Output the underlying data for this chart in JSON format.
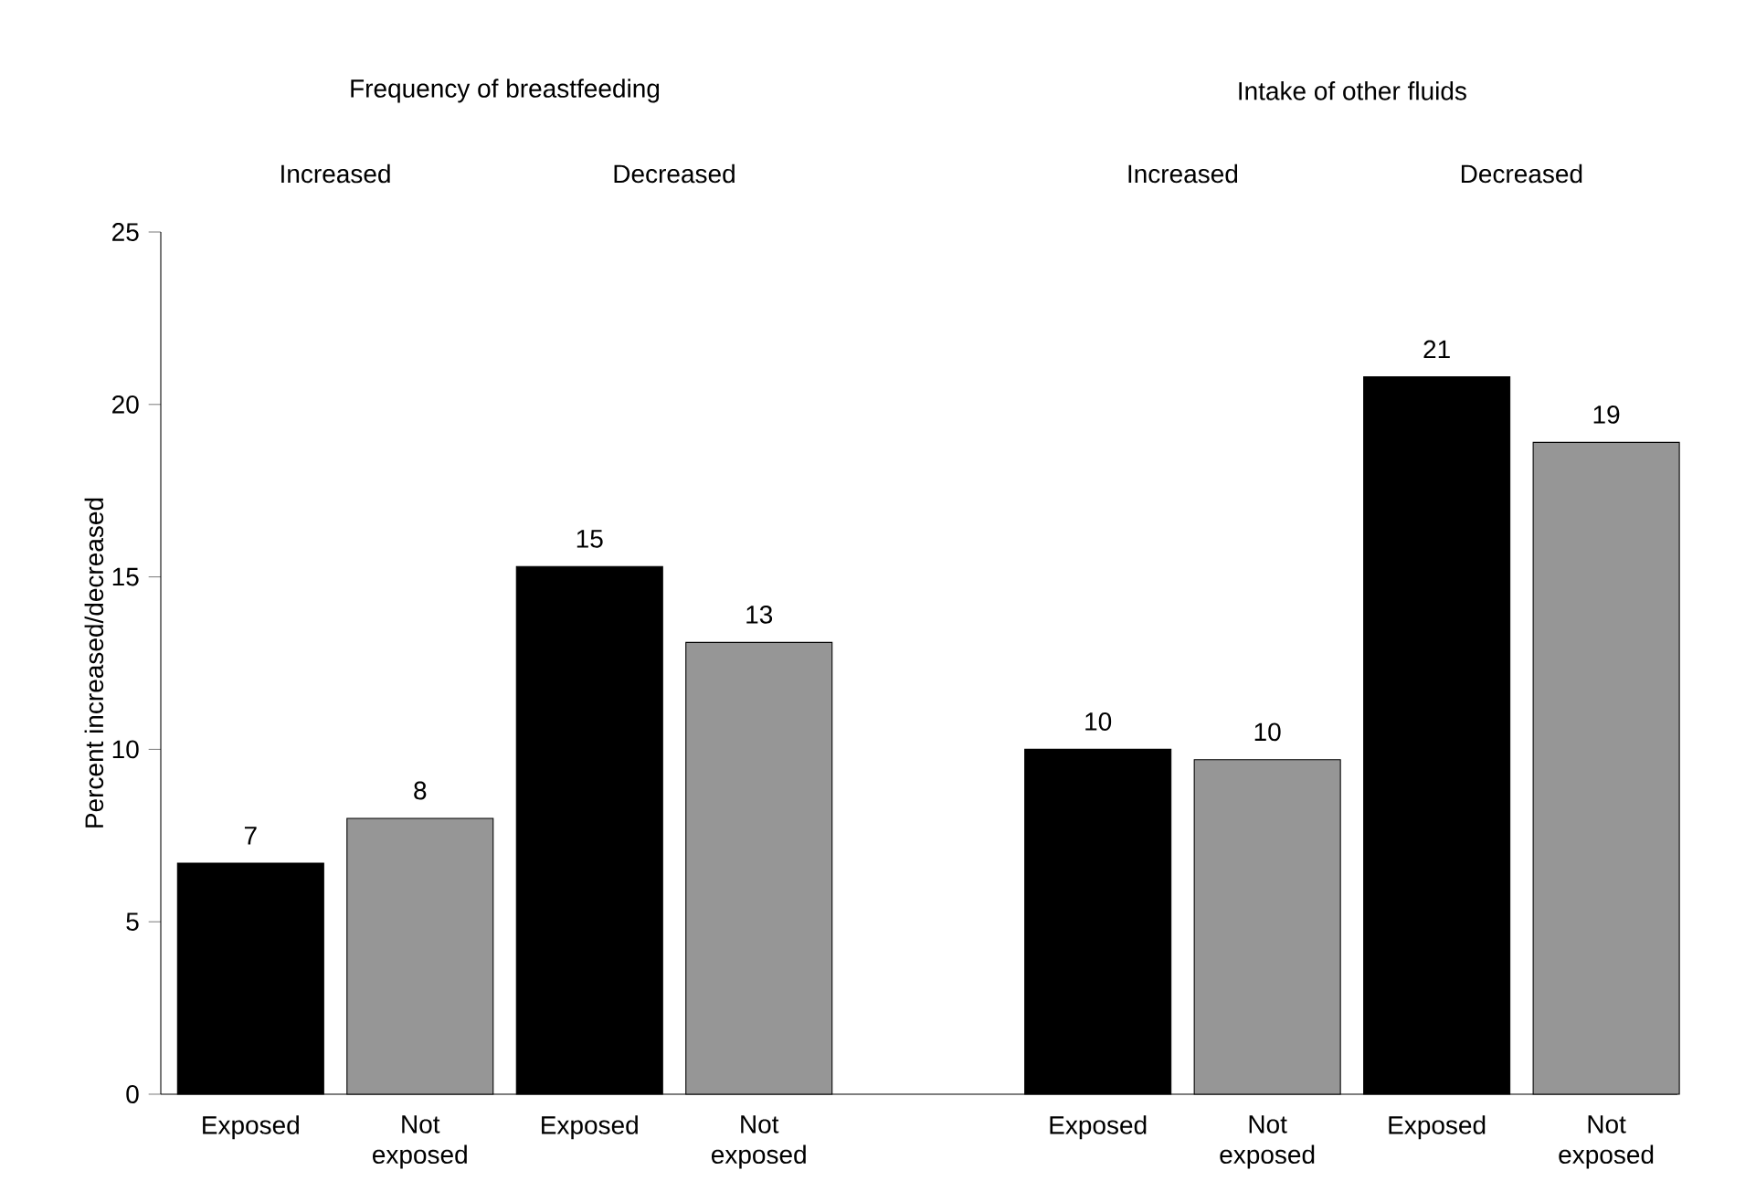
{
  "chart_data": {
    "type": "bar",
    "categories": [
      "Exposed",
      "Not exposed",
      "Exposed",
      "Not exposed",
      null,
      "Exposed",
      "Not exposed",
      "Exposed",
      "Not exposed"
    ],
    "values": [
      6.7,
      8.0,
      15.3,
      13.1,
      null,
      10.0,
      9.7,
      20.8,
      18.9
    ],
    "value_labels": [
      "7",
      "8",
      "15",
      "13",
      null,
      "10",
      "10",
      "21",
      "19"
    ],
    "colors": [
      "#000000",
      "#969696",
      "#000000",
      "#969696",
      "#000000",
      "#000000",
      "#969696",
      "#000000",
      "#969696"
    ],
    "ylabel": "Percent increased/decreased",
    "ylim": [
      0,
      25
    ],
    "yticks": [
      0,
      5,
      10,
      15,
      20,
      25
    ],
    "annotations": [
      "Frequency of breastfeeding",
      "Intake of other fluids",
      "Increased",
      "Decreased",
      "Increased",
      "Decreased"
    ]
  }
}
